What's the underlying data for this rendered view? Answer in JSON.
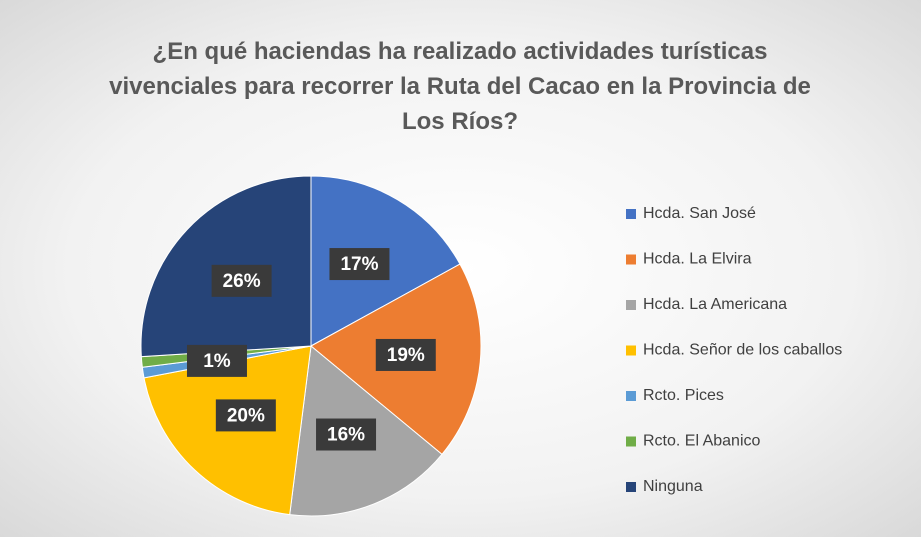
{
  "chart_data": {
    "type": "pie",
    "title": "¿En qué haciendas ha realizado actividades turísticas vivenciales para recorrer la Ruta del Cacao en la Provincia de Los Ríos?",
    "categories": [
      "Hcda. San José",
      "Hcda. La Elvira",
      "Hcda. La Americana",
      "Hcda. Señor de los caballos",
      "Rcto. Pices",
      "Rcto. El Abanico",
      "Ninguna"
    ],
    "values": [
      17,
      19,
      16,
      20,
      1,
      1,
      26
    ],
    "value_labels": [
      "17%",
      "19%",
      "16%",
      "20%",
      "1%",
      null,
      "26%"
    ],
    "colors": [
      "#4472c4",
      "#ed7d31",
      "#a5a5a5",
      "#ffc000",
      "#5b9bd5",
      "#70ad47",
      "#264478"
    ],
    "legend": "right"
  }
}
